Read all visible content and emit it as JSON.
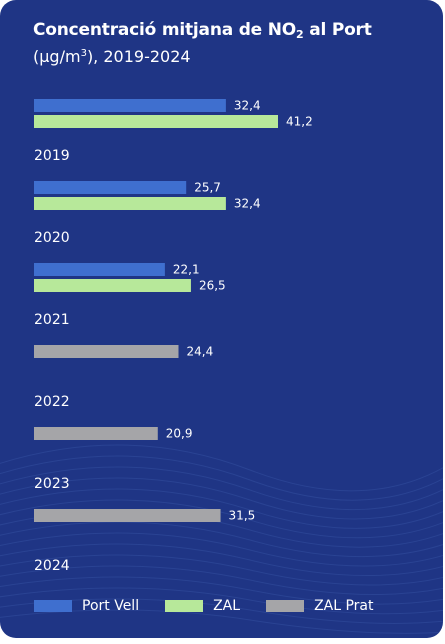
{
  "title": {
    "main": "Concentració mitjana  de NO",
    "sub": "2",
    "end": " al Port"
  },
  "subtitle": {
    "pre": "(µg/m",
    "sup": "3",
    "post": "), 2019-2024"
  },
  "colors": {
    "background": "#1f3585",
    "port_vell": "#3f6fcf",
    "zal": "#b7e89a",
    "zal_prat": "#a5a5a8"
  },
  "chart_data": {
    "type": "bar",
    "orientation": "horizontal",
    "categories": [
      "2019",
      "2020",
      "2021",
      "2022",
      "2023",
      "2024"
    ],
    "series": [
      {
        "name": "Port Vell",
        "values": [
          32.4,
          25.7,
          22.1,
          null,
          null,
          null
        ],
        "labels": [
          "32,4",
          "25,7",
          "22,1",
          "",
          "",
          ""
        ]
      },
      {
        "name": "ZAL",
        "values": [
          41.2,
          32.4,
          26.5,
          null,
          null,
          null
        ],
        "labels": [
          "41,2",
          "32,4",
          "26,5",
          "",
          "",
          ""
        ]
      },
      {
        "name": "ZAL Prat",
        "values": [
          null,
          null,
          null,
          24.4,
          20.9,
          31.5
        ],
        "labels": [
          "",
          "",
          "",
          "24,4",
          "20,9",
          "31,5"
        ]
      }
    ],
    "legend": {
      "position": "bottom",
      "entries": [
        "Port Vell",
        "ZAL",
        "ZAL Prat"
      ]
    },
    "xlim": [
      0,
      50
    ],
    "grid": false
  }
}
